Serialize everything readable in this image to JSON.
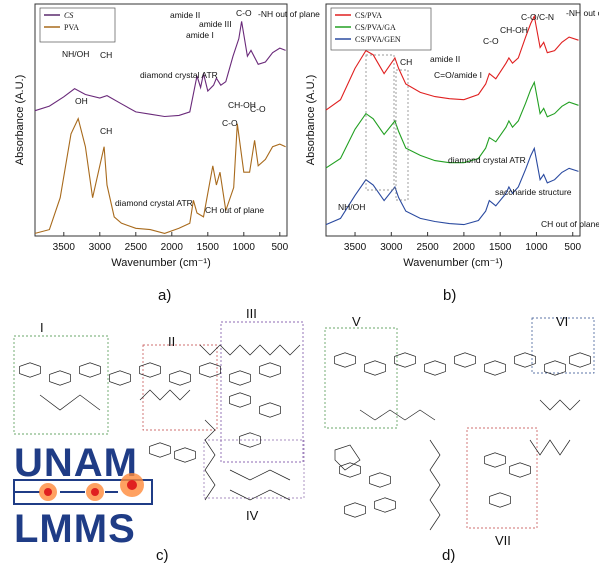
{
  "chart_data": [
    {
      "type": "line",
      "panel_label": "a)",
      "xlabel": "Wavenumber (cm⁻¹)",
      "ylabel": "Absorbance (A.U.)",
      "x_ticks": [
        "3500",
        "3000",
        "2500",
        "2000",
        "1500",
        "1000",
        "500"
      ],
      "xlim": [
        3900,
        400
      ],
      "x_reversed": true,
      "legend": [
        {
          "name": "CS",
          "color": "#5b2a6e"
        },
        {
          "name": "PVA",
          "color": "#a86a1c"
        }
      ],
      "series": [
        {
          "name": "CS",
          "color": "#6a2a7a",
          "x": [
            3900,
            3700,
            3500,
            3350,
            3200,
            3000,
            2900,
            2700,
            2500,
            2300,
            2100,
            1900,
            1750,
            1650,
            1600,
            1560,
            1500,
            1420,
            1380,
            1320,
            1250,
            1150,
            1070,
            1030,
            950,
            900,
            800,
            700,
            600,
            500,
            420
          ],
          "y": [
            0.08,
            0.12,
            0.2,
            0.27,
            0.22,
            0.19,
            0.21,
            0.14,
            0.07,
            0.05,
            0.03,
            0.04,
            0.07,
            0.38,
            0.28,
            0.4,
            0.25,
            0.3,
            0.36,
            0.3,
            0.33,
            0.55,
            0.7,
            0.85,
            0.55,
            0.6,
            0.48,
            0.5,
            0.58,
            0.62,
            0.6
          ]
        },
        {
          "name": "PVA",
          "color": "#a86a1c",
          "x": [
            3900,
            3700,
            3550,
            3400,
            3300,
            3200,
            3100,
            3000,
            2940,
            2900,
            2800,
            2700,
            2500,
            2300,
            2100,
            1900,
            1750,
            1700,
            1650,
            1560,
            1430,
            1380,
            1330,
            1250,
            1140,
            1090,
            1000,
            920,
            850,
            800,
            700,
            600,
            500,
            420
          ],
          "y": [
            0.02,
            0.05,
            0.3,
            0.8,
            0.92,
            0.7,
            0.3,
            0.55,
            0.7,
            0.4,
            0.15,
            0.1,
            0.06,
            0.05,
            0.02,
            0.06,
            0.1,
            0.28,
            0.18,
            0.15,
            0.55,
            0.4,
            0.5,
            0.2,
            0.38,
            0.88,
            0.5,
            0.5,
            0.75,
            0.55,
            0.6,
            0.7,
            0.72,
            0.7
          ]
        }
      ],
      "annotations": [
        "NH/OH",
        "CH",
        "amide II",
        "amide I",
        "amide III",
        "C-O",
        "-NH out of plane",
        "diamond crystal ATR",
        "OH",
        "CH",
        "CH-OH",
        "C-O",
        "C-O",
        "diamond crystal ATR",
        "CH out of plane"
      ]
    },
    {
      "type": "line",
      "panel_label": "b)",
      "xlabel": "Wavenumber (cm⁻¹)",
      "ylabel": "Absorbance (A.U.)",
      "x_ticks": [
        "3500",
        "3000",
        "2500",
        "2000",
        "1500",
        "1000",
        "500"
      ],
      "xlim": [
        3900,
        400
      ],
      "x_reversed": true,
      "legend": [
        {
          "name": "CS/PVA",
          "color": "#e02020"
        },
        {
          "name": "CS/PVA/GA",
          "color": "#22a022"
        },
        {
          "name": "CS/PVA/GEN",
          "color": "#2a4aa0"
        }
      ],
      "series": [
        {
          "name": "CS/PVA",
          "color": "#e02020",
          "x": [
            3900,
            3700,
            3500,
            3350,
            3250,
            3100,
            2950,
            2900,
            2800,
            2600,
            2400,
            2200,
            2000,
            1800,
            1700,
            1650,
            1560,
            1420,
            1380,
            1330,
            1250,
            1150,
            1080,
            1030,
            950,
            900,
            850,
            750,
            650,
            550,
            420
          ],
          "y": [
            0.05,
            0.15,
            0.45,
            0.62,
            0.58,
            0.4,
            0.55,
            0.45,
            0.3,
            0.22,
            0.18,
            0.16,
            0.15,
            0.2,
            0.3,
            0.4,
            0.35,
            0.5,
            0.55,
            0.5,
            0.55,
            0.75,
            0.88,
            0.95,
            0.65,
            0.7,
            0.6,
            0.62,
            0.7,
            0.75,
            0.72
          ]
        },
        {
          "name": "CS/PVA/GA",
          "color": "#22a022",
          "x": [
            3900,
            3700,
            3500,
            3350,
            3250,
            3100,
            2950,
            2900,
            2800,
            2600,
            2400,
            2200,
            2000,
            1800,
            1700,
            1650,
            1560,
            1420,
            1380,
            1330,
            1250,
            1150,
            1080,
            1030,
            950,
            900,
            850,
            750,
            650,
            550,
            420
          ],
          "y": [
            0.03,
            0.12,
            0.4,
            0.55,
            0.5,
            0.35,
            0.48,
            0.38,
            0.22,
            0.15,
            0.1,
            0.08,
            0.08,
            0.12,
            0.22,
            0.32,
            0.28,
            0.42,
            0.48,
            0.42,
            0.48,
            0.65,
            0.78,
            0.85,
            0.55,
            0.6,
            0.52,
            0.55,
            0.62,
            0.66,
            0.63
          ]
        },
        {
          "name": "CS/PVA/GEN",
          "color": "#2a4aa0",
          "x": [
            3900,
            3700,
            3500,
            3350,
            3250,
            3100,
            2950,
            2900,
            2800,
            2600,
            2400,
            2200,
            2000,
            1800,
            1700,
            1650,
            1560,
            1420,
            1380,
            1330,
            1250,
            1150,
            1080,
            1030,
            950,
            900,
            850,
            750,
            650,
            550,
            420
          ],
          "y": [
            0.02,
            0.08,
            0.3,
            0.45,
            0.4,
            0.25,
            0.38,
            0.28,
            0.15,
            0.08,
            0.05,
            0.03,
            0.02,
            0.06,
            0.15,
            0.25,
            0.2,
            0.32,
            0.38,
            0.32,
            0.38,
            0.55,
            0.68,
            0.75,
            0.45,
            0.5,
            0.42,
            0.45,
            0.52,
            0.56,
            0.53
          ]
        }
      ],
      "annotations": [
        "NH/OH",
        "CH",
        "amide II",
        "C=O/amide I",
        "C-O",
        "CH-OH",
        "C-O/C-N",
        "-NH out of plane",
        "diamond crystal ATR",
        "saccharide structure",
        "CH out of plane"
      ]
    }
  ],
  "schemes": {
    "c": {
      "label": "c)",
      "regions": [
        "I",
        "II",
        "III",
        "IV"
      ]
    },
    "d": {
      "label": "d)",
      "regions": [
        "V",
        "VI",
        "VII"
      ]
    }
  },
  "logo": {
    "line1": "UNAM",
    "line2": "LMMS",
    "color": "#1f3c86"
  }
}
